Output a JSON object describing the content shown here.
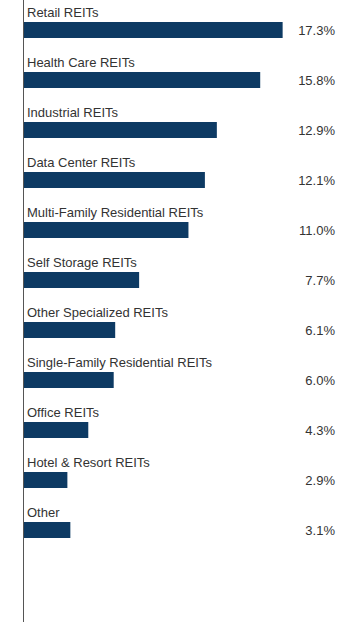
{
  "chart_data": {
    "type": "bar",
    "orientation": "horizontal",
    "categories": [
      "Retail REITs",
      "Health Care REITs",
      "Industrial REITs",
      "Data Center REITs",
      "Multi-Family Residential REITs",
      "Self Storage REITs",
      "Other Specialized REITs",
      "Single-Family Residential REITs",
      "Office REITs",
      "Hotel & Resort REITs",
      "Other"
    ],
    "values": [
      17.3,
      15.8,
      12.9,
      12.1,
      11.0,
      7.7,
      6.1,
      6.0,
      4.3,
      2.9,
      3.1
    ],
    "value_labels": [
      "17.3%",
      "15.8%",
      "12.9%",
      "12.1%",
      "11.0%",
      "7.7%",
      "6.1%",
      "6.0%",
      "4.3%",
      "2.9%",
      "3.1%"
    ],
    "color": "#0d3a63",
    "xlim": [
      0,
      20
    ],
    "grid": false,
    "data_labels": true,
    "tick_labels": false
  }
}
